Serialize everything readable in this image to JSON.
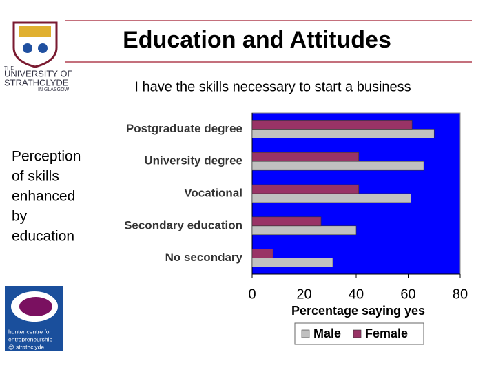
{
  "slide": {
    "title": "Education and Attitudes",
    "side_text": [
      "Perception",
      "of skills",
      "enhanced",
      "by",
      "education"
    ],
    "university_logo": [
      "THE",
      "UNIVERSITY OF",
      "STRATHCLYDE",
      "IN GLASGOW"
    ],
    "hunter_logo": [
      "hunter centre for",
      "entrepreneurship",
      "@ strathclyde"
    ]
  },
  "chart_data": {
    "type": "bar",
    "orientation": "horizontal",
    "title": "I have the skills necessary to start a business",
    "categories": [
      "Postgraduate degree",
      "University degree",
      "Vocational",
      "Secondary education",
      "No secondary"
    ],
    "series": [
      {
        "name": "Male",
        "color": "#c0c0c0",
        "values": [
          70,
          66,
          61,
          40,
          31
        ]
      },
      {
        "name": "Female",
        "color": "#993366",
        "values": [
          61.5,
          41,
          41,
          26.5,
          8
        ]
      }
    ],
    "xlabel": "Percentage saying yes",
    "xlim": [
      0,
      80
    ],
    "xticks": [
      0,
      20,
      40,
      60,
      80
    ],
    "plot_background": "#0000ff",
    "legend": "bottom"
  }
}
